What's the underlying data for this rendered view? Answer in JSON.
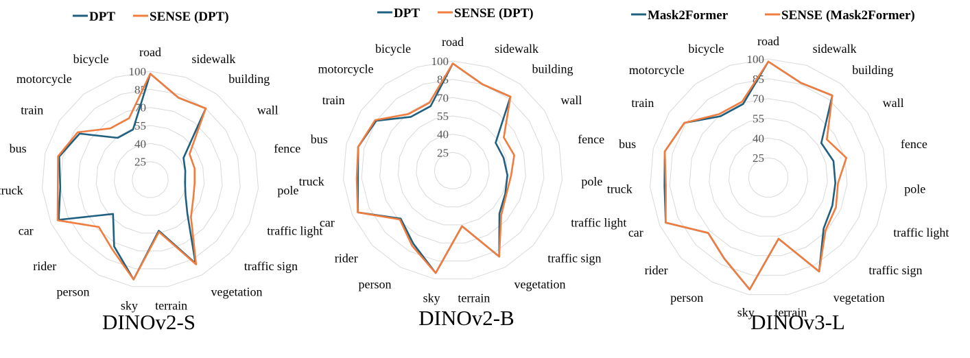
{
  "chart_data": [
    {
      "type": "radar",
      "title": "DINOv2-S",
      "categories": [
        "road",
        "sidewalk",
        "building",
        "wall",
        "fence",
        "pole",
        "traffic light",
        "traffic sign",
        "vegetation",
        "terrain",
        "sky",
        "person",
        "rider",
        "car",
        "truck",
        "bus",
        "train",
        "motorcycle",
        "bicycle"
      ],
      "ticks": [
        "25",
        "40",
        "55",
        "70",
        "85",
        "100"
      ],
      "rlim": [
        10,
        100
      ],
      "series": [
        {
          "name": "DPT",
          "color": "#1f5f7f",
          "values": [
            98,
            82,
            85,
            43,
            40,
            39,
            42,
            52,
            89,
            53,
            94,
            73,
            52,
            93,
            85,
            88,
            80,
            54,
            54
          ]
        },
        {
          "name": "SENSE (DPT)",
          "color": "#f07c3e",
          "values": [
            98,
            82,
            85,
            49,
            48,
            47,
            49,
            56,
            90,
            54,
            94,
            76,
            68,
            94,
            87,
            89,
            82,
            64,
            64
          ]
        }
      ]
    },
    {
      "type": "radar",
      "title": "DINOv2-B",
      "categories": [
        "road",
        "sidewalk",
        "building",
        "wall",
        "fence",
        "pole",
        "traffic light",
        "traffic sign",
        "vegetation",
        "terrain",
        "sky",
        "person",
        "rider",
        "car",
        "truck",
        "bus",
        "train",
        "motorcycle",
        "bicycle"
      ],
      "ticks": [
        "25",
        "40",
        "55",
        "70",
        "85",
        "100"
      ],
      "rlim": [
        10,
        100
      ],
      "series": [
        {
          "name": "DPT",
          "color": "#1f5f7f",
          "values": [
            98,
            85,
            87,
            52,
            53,
            55,
            57,
            62,
            90,
            56,
            95,
            78,
            68,
            95,
            88,
            90,
            85,
            66,
            66
          ]
        },
        {
          "name": "SENSE (DPT)",
          "color": "#f07c3e",
          "values": [
            98,
            85,
            87,
            60,
            62,
            58,
            58,
            64,
            90,
            56,
            95,
            80,
            69,
            95,
            89,
            90,
            86,
            69,
            69
          ]
        }
      ]
    },
    {
      "type": "radar",
      "title": "DINOv3-L",
      "categories": [
        "road",
        "sidewalk",
        "building",
        "wall",
        "fence",
        "pole",
        "traffic light",
        "traffic sign",
        "vegetation",
        "terrain",
        "sky",
        "person",
        "rider",
        "car",
        "truck",
        "bus",
        "train",
        "motorcycle",
        "bicycle"
      ],
      "ticks": [
        "25",
        "40",
        "55",
        "70",
        "85",
        "100"
      ],
      "rlim": [
        10,
        100
      ],
      "series": [
        {
          "name": "Mask2Former",
          "color": "#1f5f7f",
          "values": [
            98,
            86,
            89,
            58,
            61,
            61,
            63,
            67,
            91,
            57,
            96,
            80,
            72,
            95,
            89,
            91,
            86,
            69,
            69
          ]
        },
        {
          "name": "SENSE (Mask2Former)",
          "color": "#f07c3e",
          "values": [
            98,
            86,
            89,
            63,
            71,
            63,
            66,
            69,
            91,
            57,
            96,
            80,
            72,
            95,
            88,
            91,
            86,
            71,
            71
          ]
        }
      ]
    }
  ]
}
